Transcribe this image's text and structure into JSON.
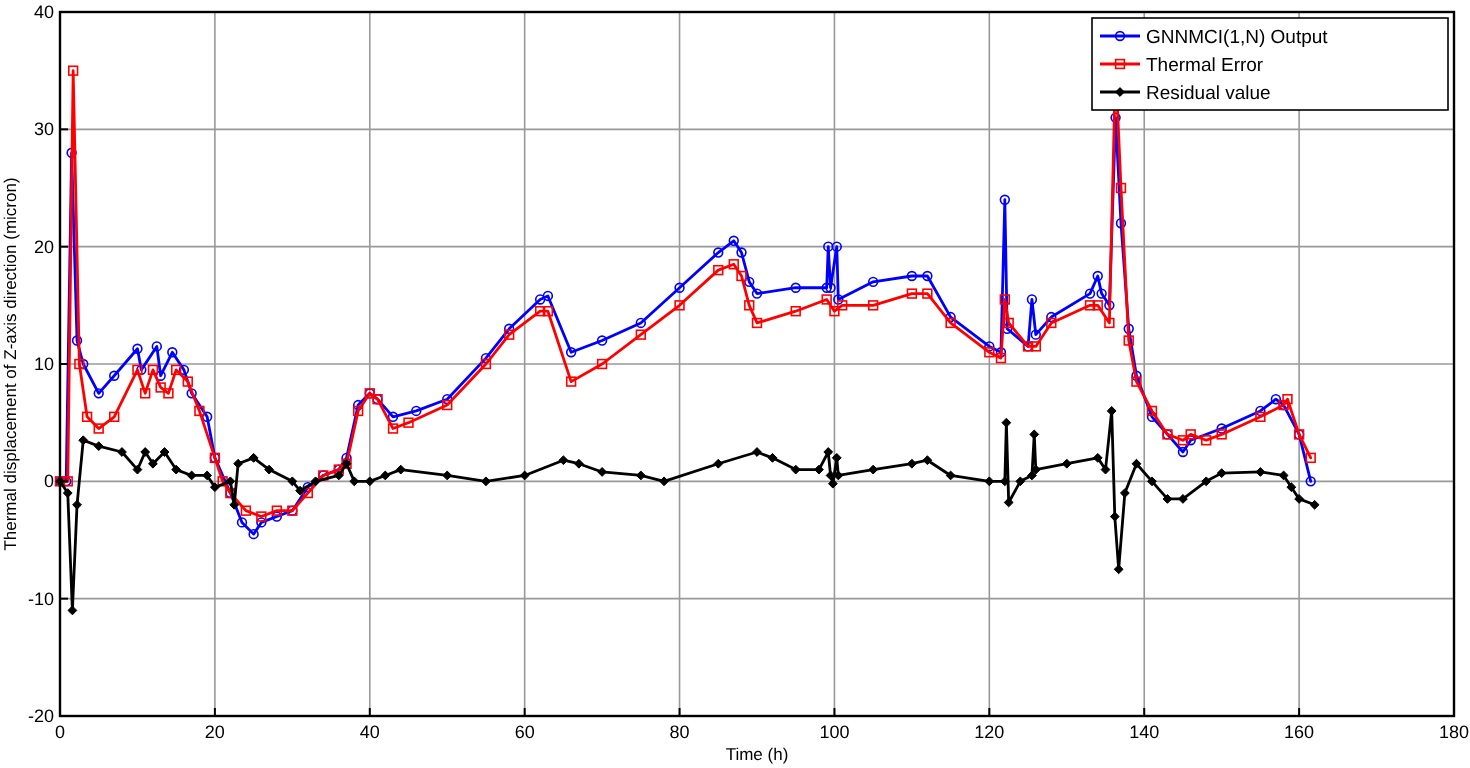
{
  "chart_data": {
    "type": "line",
    "xlabel": "Time (h)",
    "ylabel": "Thermal displacement of Z-axis direction (micron)",
    "xlim": [
      0,
      180
    ],
    "xticks": [
      0,
      20,
      40,
      60,
      80,
      100,
      120,
      140,
      160,
      180
    ],
    "ylim": [
      -20,
      40
    ],
    "yticks": [
      -20,
      -10,
      0,
      10,
      20,
      30,
      40
    ],
    "grid": true,
    "legend": "top right",
    "series": [
      {
        "name": "GNNMCI(1,N) Output",
        "color": "#0000ff",
        "marker": "circle",
        "x": [
          0,
          0.8,
          1.5,
          2.2,
          3,
          5,
          7,
          10,
          10.5,
          12.5,
          13,
          14.5,
          16,
          17,
          19,
          20,
          22,
          23.5,
          25,
          26,
          28,
          30,
          32,
          34,
          36,
          37,
          38.5,
          40,
          41,
          43,
          46,
          50,
          55,
          58,
          62,
          63,
          66,
          70,
          75,
          80,
          85,
          87,
          88,
          89,
          90,
          95,
          99,
          99.2,
          99.5,
          100.3,
          100.5,
          105,
          110,
          112,
          115,
          120,
          121.5,
          122,
          122.3,
          125,
          125.5,
          126,
          128,
          133,
          134,
          134.5,
          135.5,
          136.3,
          137,
          138,
          139,
          141,
          143,
          145,
          146,
          150,
          155,
          157,
          158,
          160,
          161.5
        ],
        "values": [
          0,
          0,
          28,
          12,
          10,
          7.5,
          9,
          11.3,
          9.5,
          11.5,
          9,
          11,
          9.5,
          7.5,
          5.5,
          2,
          -1,
          -3.5,
          -4.5,
          -3.5,
          -3,
          -2.5,
          -0.5,
          0.5,
          1,
          2,
          6.5,
          7.5,
          7,
          5.5,
          6,
          7,
          10.5,
          13,
          15.5,
          15.8,
          11,
          12,
          13.5,
          16.5,
          19.5,
          20.5,
          19.5,
          17,
          16,
          16.5,
          16.5,
          20,
          16.5,
          20,
          15.5,
          17,
          17.5,
          17.5,
          14,
          11.5,
          11,
          24,
          13,
          11.5,
          15.5,
          12.5,
          14,
          16,
          17.5,
          16,
          15,
          31,
          22,
          13,
          9,
          5.5,
          4,
          2.5,
          3.5,
          4.5,
          6,
          7,
          6.5,
          4,
          0
        ]
      },
      {
        "name": "Thermal Error",
        "color": "#ff0000",
        "marker": "square",
        "x": [
          0,
          1,
          1.7,
          2.5,
          3.5,
          5,
          7,
          10,
          11,
          12,
          13,
          14,
          15,
          16.5,
          18,
          20,
          21,
          22,
          24,
          26,
          28,
          30,
          32,
          34,
          36,
          37,
          38.5,
          40,
          41,
          43,
          45,
          50,
          55,
          58,
          62,
          63,
          66,
          70,
          75,
          80,
          85,
          87,
          88,
          89,
          90,
          95,
          99,
          100,
          101,
          105,
          110,
          112,
          115,
          120,
          121.5,
          122,
          122.5,
          125,
          126,
          128,
          133,
          134,
          135.5,
          136.3,
          137,
          138,
          139,
          141,
          143,
          145,
          146,
          148,
          150,
          155,
          158,
          158.5,
          160,
          161.5
        ],
        "values": [
          0,
          0,
          35,
          10,
          5.5,
          4.5,
          5.5,
          9.5,
          7.5,
          9.5,
          8,
          7.5,
          9.5,
          8.5,
          6,
          2,
          0,
          -1,
          -2.5,
          -3,
          -2.5,
          -2.5,
          -1,
          0.5,
          1,
          1.5,
          6,
          7.5,
          7,
          4.5,
          5,
          6.5,
          10,
          12.5,
          14.5,
          14.5,
          8.5,
          10,
          12.5,
          15,
          18,
          18.5,
          17.5,
          15,
          13.5,
          14.5,
          15.5,
          14.5,
          15,
          15,
          16,
          16,
          13.5,
          11,
          10.5,
          15.5,
          13.5,
          11.5,
          11.5,
          13.5,
          15,
          15,
          13.5,
          35.5,
          25,
          12,
          8.5,
          6,
          4,
          3.5,
          4,
          3.5,
          4,
          5.5,
          6.5,
          7,
          4,
          2
        ]
      },
      {
        "name": "Residual value",
        "color": "#000000",
        "marker": "diamond",
        "x": [
          0,
          1,
          1.6,
          2.2,
          3,
          5,
          8,
          10,
          11,
          12,
          13.5,
          15,
          17,
          19,
          20,
          22,
          22.5,
          23,
          25,
          27,
          30,
          31,
          33,
          36,
          37,
          38,
          40,
          42,
          44,
          50,
          55,
          60,
          65,
          67,
          70,
          75,
          78,
          85,
          90,
          92,
          95,
          98,
          99.2,
          99.5,
          99.8,
          100.3,
          100.5,
          105,
          110,
          112,
          115,
          120,
          122,
          122.2,
          122.5,
          124,
          125.5,
          125.8,
          126,
          130,
          134,
          135,
          135.8,
          136.2,
          136.7,
          137.5,
          139,
          141,
          143,
          145,
          148,
          150,
          155,
          158,
          159,
          160,
          162
        ],
        "values": [
          0,
          -1,
          -11,
          -2,
          3.5,
          3,
          2.5,
          1,
          2.5,
          1.5,
          2.5,
          1,
          0.5,
          0.5,
          -0.5,
          0,
          -2,
          1.5,
          2,
          1,
          0,
          -0.8,
          0,
          0.5,
          1.5,
          0,
          0,
          0.5,
          1,
          0.5,
          0,
          0.5,
          1.8,
          1.5,
          0.8,
          0.5,
          0,
          1.5,
          2.5,
          2,
          1,
          1,
          2.5,
          0.5,
          -0.2,
          2,
          0.5,
          1,
          1.5,
          1.8,
          0.5,
          0,
          0,
          5,
          -1.8,
          0,
          0.5,
          4,
          1,
          1.5,
          2,
          1,
          6,
          -3,
          -7.5,
          -1,
          1.5,
          0,
          -1.5,
          -1.5,
          0,
          0.7,
          0.8,
          0.5,
          -0.5,
          -1.5,
          -2
        ]
      }
    ]
  }
}
